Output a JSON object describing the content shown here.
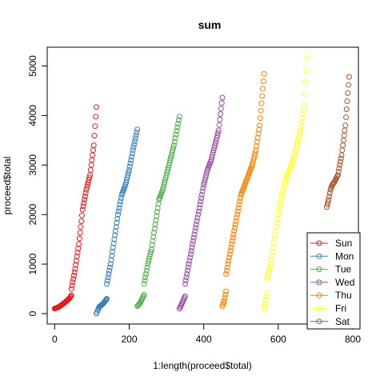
{
  "chart_data": {
    "type": "scatter",
    "title": "sum",
    "xlabel": "1:length(proceed$total)",
    "ylabel": "proceed$total",
    "xlim": [
      -20,
      815
    ],
    "ylim": [
      -210,
      5380
    ],
    "x_ticks": [
      0,
      200,
      400,
      600,
      800
    ],
    "y_ticks": [
      0,
      1000,
      2000,
      3000,
      4000,
      5000
    ],
    "marker": "open-circle",
    "legend_position": "bottom-right",
    "series": [
      {
        "name": "Sun",
        "color": "#E41A1C",
        "segments": [
          {
            "x": [
              0,
              10,
              20,
              30,
              40,
              45
            ],
            "y": [
              100,
              130,
              180,
              240,
              310,
              370
            ]
          },
          {
            "x": [
              45,
              55,
              65,
              75,
              85,
              95,
              105,
              112
            ],
            "y": [
              500,
              900,
              1400,
              2100,
              2500,
              2800,
              3400,
              4170
            ]
          }
        ]
      },
      {
        "name": "Mon",
        "color": "#377EB8",
        "segments": [
          {
            "x": [
              112,
              120,
              130,
              140
            ],
            "y": [
              0,
              140,
              200,
              300
            ]
          },
          {
            "x": [
              140,
              150,
              160,
              170,
              180,
              190,
              200,
              210,
              222
            ],
            "y": [
              600,
              1000,
              1500,
              2000,
              2400,
              2600,
              2900,
              3300,
              3720
            ]
          }
        ]
      },
      {
        "name": "Tue",
        "color": "#4DAF4A",
        "segments": [
          {
            "x": [
              222,
              230,
              240
            ],
            "y": [
              150,
              220,
              380
            ]
          },
          {
            "x": [
              240,
              250,
              260,
              270,
              280,
              290,
              300,
              310,
              320,
              335
            ],
            "y": [
              600,
              1000,
              1300,
              1800,
              2300,
              2500,
              2800,
              3100,
              3400,
              3980
            ]
          }
        ]
      },
      {
        "name": "Wed",
        "color": "#984EA3",
        "segments": [
          {
            "x": [
              335,
              340,
              350
            ],
            "y": [
              100,
              180,
              350
            ]
          },
          {
            "x": [
              350,
              360,
              370,
              380,
              390,
              400,
              410,
              420,
              430,
              440,
              450
            ],
            "y": [
              600,
              1000,
              1400,
              1800,
              2200,
              2600,
              2900,
              3100,
              3400,
              3700,
              4360
            ]
          }
        ]
      },
      {
        "name": "Thu",
        "color": "#FF7F00",
        "segments": [
          {
            "x": [
              450,
              455,
              460
            ],
            "y": [
              150,
              260,
              450
            ]
          },
          {
            "x": [
              460,
              470,
              480,
              490,
              500,
              510,
              520,
              530,
              540,
              550,
              562
            ],
            "y": [
              800,
              1200,
              1600,
              2000,
              2400,
              2600,
              2800,
              3000,
              3300,
              3800,
              4840
            ]
          }
        ]
      },
      {
        "name": "Fri",
        "color": "#FFFF33",
        "segments": [
          {
            "x": [
              562,
              565,
              570
            ],
            "y": [
              100,
              200,
              420
            ]
          },
          {
            "x": [
              570,
              580,
              590,
              600,
              610,
              620,
              630,
              640,
              650,
              660,
              670,
              677
            ],
            "y": [
              700,
              1000,
              1500,
              2000,
              2400,
              2700,
              2900,
              3100,
              3400,
              3700,
              4200,
              5150
            ]
          }
        ]
      },
      {
        "name": "Sat",
        "color": "#A65628",
        "segments": [
          {
            "x": [
              730,
              735,
              740,
              745,
              750,
              760,
              770,
              780,
              790
            ],
            "y": [
              2150,
              2300,
              2500,
              2600,
              2650,
              2800,
              3200,
              3800,
              4780
            ]
          }
        ]
      }
    ]
  }
}
